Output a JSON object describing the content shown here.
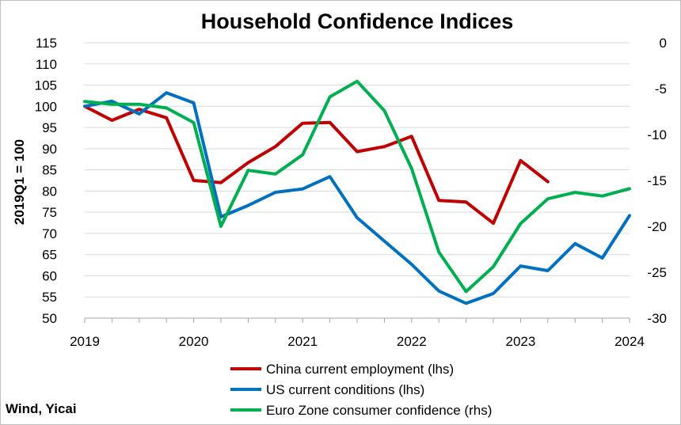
{
  "chart_data": {
    "type": "line",
    "title": "Household Confidence Indices",
    "ylabel": "2019Q1 = 100",
    "source": "Wind, Yicai",
    "x_tick_labels": [
      "2019",
      "2020",
      "2021",
      "2022",
      "2023",
      "2024"
    ],
    "x": [
      "2019Q1",
      "2019Q2",
      "2019Q3",
      "2019Q4",
      "2020Q1",
      "2020Q2",
      "2020Q3",
      "2020Q4",
      "2021Q1",
      "2021Q2",
      "2021Q3",
      "2021Q4",
      "2022Q1",
      "2022Q2",
      "2022Q3",
      "2022Q4",
      "2023Q1",
      "2023Q2",
      "2023Q3",
      "2023Q4",
      "2024Q1"
    ],
    "ylim_left": [
      50,
      115
    ],
    "ylim_right": [
      -30,
      0
    ],
    "y_left_ticks": [
      "50",
      "55",
      "60",
      "65",
      "70",
      "75",
      "80",
      "85",
      "90",
      "95",
      "100",
      "105",
      "110",
      "115"
    ],
    "y_right_ticks": [
      "-30",
      "-25",
      "-20",
      "-15",
      "-10",
      "-5",
      "0"
    ],
    "series": [
      {
        "name": "China current employment (lhs)",
        "axis": "left",
        "color": "#c00000",
        "values": [
          100,
          96.7,
          99.3,
          97.3,
          82.5,
          82.0,
          86.7,
          90.5,
          96.0,
          96.2,
          89.3,
          90.5,
          92.9,
          77.8,
          77.4,
          72.4,
          87.2,
          82.2,
          null,
          null,
          null
        ]
      },
      {
        "name": "US current conditions (lhs)",
        "axis": "left",
        "color": "#0070c0",
        "values": [
          100,
          101.2,
          98.2,
          103.2,
          100.8,
          73.9,
          76.6,
          79.7,
          80.5,
          83.4,
          73.7,
          68.2,
          62.7,
          56.4,
          53.5,
          55.8,
          62.3,
          61.2,
          67.6,
          64.2,
          74.2
        ]
      },
      {
        "name": "Euro Zone consumer confidence (rhs)",
        "axis": "right",
        "color": "#00b050",
        "values": [
          -6.4,
          -6.7,
          -6.7,
          -7.1,
          -8.7,
          -20.0,
          -13.9,
          -14.3,
          -12.2,
          -5.9,
          -4.2,
          -7.4,
          -13.7,
          -22.8,
          -27.1,
          -24.4,
          -19.7,
          -17.0,
          -16.3,
          -16.7,
          -15.9
        ]
      }
    ]
  }
}
